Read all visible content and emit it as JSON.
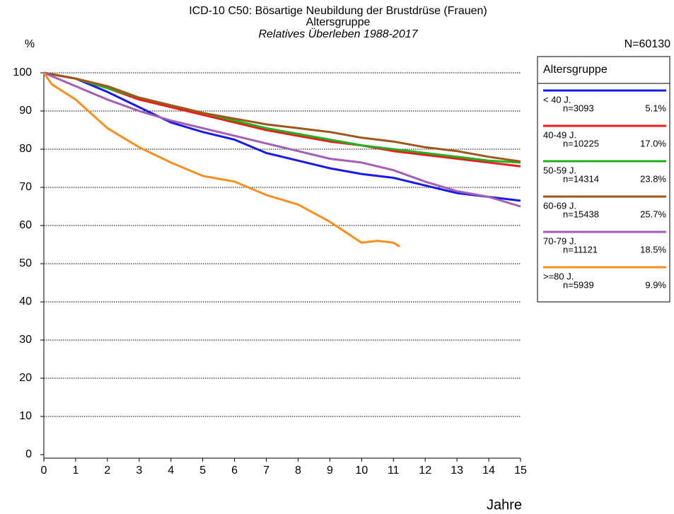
{
  "chart_data": {
    "type": "line",
    "title": "ICD-10 C50: Bösartige Neubildung der Brustdrüse (Frauen)",
    "title2": "Altersgruppe",
    "subtitle": "Relatives Überleben 1988-2017",
    "y_label": "%",
    "x_label": "Jahre",
    "total": "N=60130",
    "legend_title": "Altersgruppe",
    "xlim": [
      0,
      15
    ],
    "xticks": [
      0,
      1,
      2,
      3,
      4,
      5,
      6,
      7,
      8,
      9,
      10,
      11,
      12,
      13,
      14,
      15
    ],
    "ylim": [
      0,
      100
    ],
    "yticks": [
      0,
      10,
      20,
      30,
      40,
      50,
      60,
      70,
      80,
      90,
      100
    ],
    "grid": true,
    "series": [
      {
        "name": "< 40 J.",
        "n": "n=3093",
        "share": "5.1%",
        "color": "#1a1ae6",
        "x": [
          0,
          1,
          2,
          3,
          4,
          5,
          6,
          7,
          8,
          9,
          10,
          11,
          12,
          13,
          14,
          15
        ],
        "values": [
          100,
          98.5,
          95,
          91,
          87,
          84.5,
          82.5,
          79,
          77,
          75,
          73.5,
          72.5,
          70.5,
          68.5,
          67.5,
          66.5
        ]
      },
      {
        "name": "40-49 J.",
        "n": "n=10225",
        "share": "17.0%",
        "color": "#ee1c1c",
        "x": [
          0,
          1,
          2,
          3,
          4,
          5,
          6,
          7,
          8,
          9,
          10,
          11,
          12,
          13,
          14,
          15
        ],
        "values": [
          100,
          98.5,
          96,
          93,
          91,
          89,
          87,
          85,
          83.5,
          82,
          81,
          79.5,
          78.5,
          77.5,
          76.5,
          75.5
        ]
      },
      {
        "name": "50-59 J.",
        "n": "n=14314",
        "share": "23.8%",
        "color": "#1fb11f",
        "x": [
          0,
          1,
          2,
          3,
          4,
          5,
          6,
          7,
          8,
          9,
          10,
          11,
          12,
          13,
          14,
          15
        ],
        "values": [
          100,
          98.5,
          96,
          93.5,
          91.5,
          89.5,
          87.5,
          85.5,
          84,
          82.5,
          81,
          80,
          79,
          78,
          77,
          76.5
        ]
      },
      {
        "name": "60-69 J.",
        "n": "n=15438",
        "share": "25.7%",
        "color": "#a0561a",
        "x": [
          0,
          1,
          2,
          3,
          4,
          5,
          6,
          7,
          8,
          9,
          10,
          11,
          12,
          13,
          14,
          15
        ],
        "values": [
          100,
          98.5,
          96.5,
          93.5,
          91.5,
          89.5,
          88,
          86.5,
          85.5,
          84.5,
          83,
          82,
          80.5,
          79.5,
          78,
          76.8
        ]
      },
      {
        "name": "70-79 J.",
        "n": "n=11121",
        "share": "18.5%",
        "color": "#a35fb3",
        "x": [
          0,
          1,
          2,
          3,
          4,
          5,
          6,
          7,
          8,
          9,
          10,
          11,
          12,
          13,
          14,
          15
        ],
        "values": [
          100,
          96.5,
          93,
          90,
          87.5,
          85.5,
          83.5,
          81.5,
          79.5,
          77.5,
          76.5,
          74.5,
          71.5,
          69,
          67.5,
          65
        ]
      },
      {
        "name": ">=80 J.",
        "n": "n=5939",
        "share": "9.9%",
        "color": "#f7901e",
        "x": [
          0,
          0.25,
          1,
          2,
          3,
          4,
          5,
          6,
          7,
          8,
          9,
          10,
          10.5,
          11,
          11.2
        ],
        "values": [
          100,
          97,
          93,
          85.5,
          80.5,
          76.5,
          73,
          71.5,
          68,
          65.5,
          61,
          55.5,
          56,
          55.5,
          54.5
        ]
      }
    ]
  }
}
